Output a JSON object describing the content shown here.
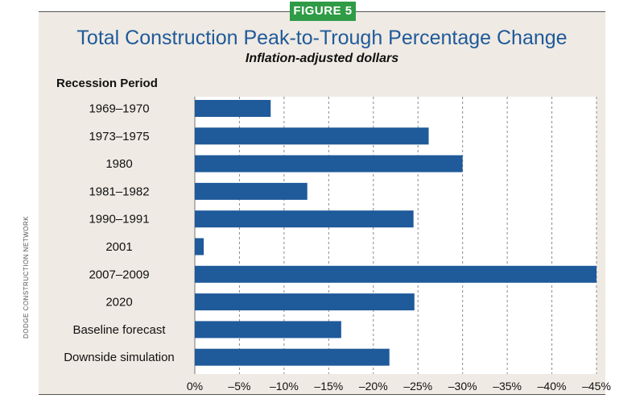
{
  "badge": "FIGURE 5",
  "credit": "DODGE CONSTRUCTION NETWORK",
  "chart_data": {
    "type": "bar",
    "orientation": "horizontal",
    "title": "Total Construction Peak-to-Trough Percentage Change",
    "subtitle": "Inflation-adjusted dollars",
    "ylabel": "Recession Period",
    "xlabel": "",
    "categories": [
      "1969–1970",
      "1973–1975",
      "1980",
      "1981–1982",
      "1990–1991",
      "2001",
      "2007–2009",
      "2020",
      "Baseline forecast",
      "Downside simulation"
    ],
    "values": [
      -8.5,
      -26.2,
      -30.0,
      -12.6,
      -24.5,
      -1.0,
      -45.0,
      -24.6,
      -16.4,
      -21.8
    ],
    "xlim": [
      0,
      -45
    ],
    "xticks": [
      0,
      -5,
      -10,
      -15,
      -20,
      -25,
      -30,
      -35,
      -40,
      -45
    ],
    "xtick_labels": [
      "0%",
      "–5%",
      "–10%",
      "–15%",
      "–20%",
      "–25%",
      "–30%",
      "–35%",
      "–40%",
      "–45%"
    ],
    "bar_color": "#1f5a9a",
    "grid": "vertical dashed",
    "legend": "none"
  }
}
